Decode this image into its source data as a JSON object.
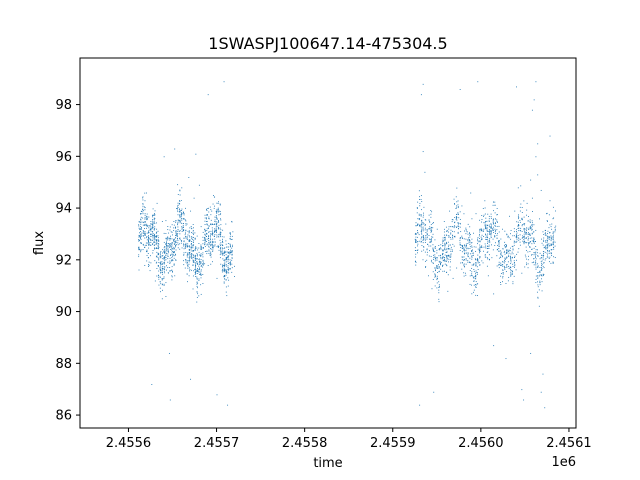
{
  "chart_data": {
    "type": "scatter",
    "title": "1SWASPJ100647.14-475304.5",
    "xlabel": "time",
    "ylabel": "flux",
    "x_offset_label": "1e6",
    "xlim": [
      2455545,
      2456108
    ],
    "ylim": [
      85.5,
      99.8
    ],
    "x_ticks": [
      2455600,
      2455700,
      2455800,
      2455900,
      2456000,
      2456100
    ],
    "x_tick_labels": [
      "2.4556",
      "2.4557",
      "2.4558",
      "2.4559",
      "2.4560",
      "2.4561"
    ],
    "y_ticks": [
      86,
      88,
      90,
      92,
      94,
      96,
      98
    ],
    "y_tick_labels": [
      "86",
      "88",
      "90",
      "92",
      "94",
      "96",
      "98"
    ],
    "grid": false,
    "marker_color": "#1f77b4",
    "seasons": [
      {
        "start": 2455611,
        "end": 2455719,
        "center": 92.6,
        "spread": 0.9
      },
      {
        "start": 2455925,
        "end": 2456085,
        "center": 92.6,
        "spread": 0.9
      }
    ],
    "series": [
      {
        "values": [
          [
            2455612,
            93.2
          ],
          [
            2455614,
            92.4
          ],
          [
            2455616,
            93.8
          ],
          [
            2455618,
            91.8
          ],
          [
            2455620,
            94.6
          ],
          [
            2455622,
            92.1
          ],
          [
            2455624,
            91.6
          ],
          [
            2455626,
            93.0
          ],
          [
            2455628,
            92.7
          ],
          [
            2455630,
            91.2
          ],
          [
            2455632,
            94.2
          ],
          [
            2455634,
            92.5
          ],
          [
            2455636,
            91.9
          ],
          [
            2455638,
            93.5
          ],
          [
            2455640,
            92.3
          ],
          [
            2455642,
            90.6
          ],
          [
            2455644,
            92.9
          ],
          [
            2455646,
            88.4
          ],
          [
            2455648,
            93.1
          ],
          [
            2455650,
            92.0
          ],
          [
            2455652,
            91.4
          ],
          [
            2455654,
            94.0
          ],
          [
            2455656,
            92.6
          ],
          [
            2455658,
            93.7
          ],
          [
            2455660,
            94.8
          ],
          [
            2455662,
            92.2
          ],
          [
            2455664,
            91.7
          ],
          [
            2455666,
            93.4
          ],
          [
            2455668,
            95.2
          ],
          [
            2455670,
            93.9
          ],
          [
            2455672,
            92.8
          ],
          [
            2455674,
            94.4
          ],
          [
            2455676,
            91.5
          ],
          [
            2455678,
            92.4
          ],
          [
            2455680,
            94.9
          ],
          [
            2455682,
            93.3
          ],
          [
            2455684,
            91.1
          ],
          [
            2455686,
            92.6
          ],
          [
            2455688,
            93.6
          ],
          [
            2455690,
            91.8
          ],
          [
            2455692,
            92.2
          ],
          [
            2455694,
            93.9
          ],
          [
            2455696,
            94.5
          ],
          [
            2455698,
            92.7
          ],
          [
            2455700,
            91.3
          ],
          [
            2455702,
            93.0
          ],
          [
            2455704,
            92.5
          ],
          [
            2455706,
            91.6
          ],
          [
            2455708,
            92.9
          ],
          [
            2455710,
            93.4
          ],
          [
            2455712,
            92.1
          ],
          [
            2455714,
            91.9
          ],
          [
            2455716,
            92.8
          ],
          [
            2455718,
            93.1
          ],
          [
            2455626,
            87.2
          ],
          [
            2455640,
            96.0
          ],
          [
            2455647,
            86.6
          ],
          [
            2455652,
            96.3
          ],
          [
            2455670,
            87.4
          ],
          [
            2455676,
            96.1
          ],
          [
            2455690,
            98.4
          ],
          [
            2455700,
            86.8
          ],
          [
            2455708,
            98.9
          ],
          [
            2455712,
            86.4
          ],
          [
            2455926,
            93.0
          ],
          [
            2455928,
            92.4
          ],
          [
            2455930,
            93.6
          ],
          [
            2455932,
            94.5
          ],
          [
            2455934,
            96.2
          ],
          [
            2455936,
            95.4
          ],
          [
            2455938,
            92.0
          ],
          [
            2455940,
            91.4
          ],
          [
            2455942,
            92.8
          ],
          [
            2455944,
            90.9
          ],
          [
            2455946,
            92.1
          ],
          [
            2455948,
            91.6
          ],
          [
            2455950,
            93.2
          ],
          [
            2455952,
            90.4
          ],
          [
            2455954,
            92.6
          ],
          [
            2455956,
            91.8
          ],
          [
            2455958,
            93.5
          ],
          [
            2455960,
            92.3
          ],
          [
            2455962,
            90.8
          ],
          [
            2455964,
            93.9
          ],
          [
            2455966,
            92.5
          ],
          [
            2455968,
            91.3
          ],
          [
            2455970,
            92.9
          ],
          [
            2455972,
            91.7
          ],
          [
            2455974,
            93.4
          ],
          [
            2455976,
            92.6
          ],
          [
            2455978,
            94.1
          ],
          [
            2455980,
            92.0
          ],
          [
            2455982,
            91.5
          ],
          [
            2455984,
            93.1
          ],
          [
            2455986,
            92.7
          ],
          [
            2455988,
            94.6
          ],
          [
            2455990,
            92.4
          ],
          [
            2455992,
            91.2
          ],
          [
            2455994,
            93.8
          ],
          [
            2455996,
            92.2
          ],
          [
            2455998,
            93.0
          ],
          [
            2456000,
            92.5
          ],
          [
            2456002,
            91.9
          ],
          [
            2456004,
            94.3
          ],
          [
            2456006,
            92.8
          ],
          [
            2456008,
            91.4
          ],
          [
            2456010,
            93.3
          ],
          [
            2456012,
            92.1
          ],
          [
            2456014,
            90.7
          ],
          [
            2456016,
            93.6
          ],
          [
            2456018,
            94.0
          ],
          [
            2456020,
            92.6
          ],
          [
            2456022,
            91.8
          ],
          [
            2456024,
            93.2
          ],
          [
            2456026,
            92.3
          ],
          [
            2456028,
            91.1
          ],
          [
            2456030,
            92.9
          ],
          [
            2456032,
            93.7
          ],
          [
            2456034,
            91.6
          ],
          [
            2456036,
            92.4
          ],
          [
            2456038,
            93.9
          ],
          [
            2456040,
            92.0
          ],
          [
            2456042,
            94.8
          ],
          [
            2456044,
            92.7
          ],
          [
            2456046,
            91.5
          ],
          [
            2456048,
            93.4
          ],
          [
            2456050,
            92.2
          ],
          [
            2456052,
            94.2
          ],
          [
            2456054,
            93.0
          ],
          [
            2456056,
            95.1
          ],
          [
            2456058,
            94.4
          ],
          [
            2456060,
            92.8
          ],
          [
            2456062,
            96.0
          ],
          [
            2456064,
            95.3
          ],
          [
            2456066,
            93.6
          ],
          [
            2456068,
            94.7
          ],
          [
            2456070,
            93.1
          ],
          [
            2456072,
            92.5
          ],
          [
            2456074,
            93.8
          ],
          [
            2456076,
            92.9
          ],
          [
            2456078,
            94.3
          ],
          [
            2456080,
            93.4
          ],
          [
            2456082,
            92.6
          ],
          [
            2456084,
            93.2
          ],
          [
            2455932,
            98.4
          ],
          [
            2455934,
            98.8
          ],
          [
            2455930,
            86.4
          ],
          [
            2455946,
            86.9
          ],
          [
            2455976,
            98.6
          ],
          [
            2455996,
            98.9
          ],
          [
            2456014,
            88.7
          ],
          [
            2456028,
            88.2
          ],
          [
            2456040,
            98.7
          ],
          [
            2456046,
            87.0
          ],
          [
            2456058,
            97.8
          ],
          [
            2456060,
            98.2
          ],
          [
            2456062,
            98.9
          ],
          [
            2456064,
            96.5
          ],
          [
            2456068,
            86.9
          ],
          [
            2456070,
            87.6
          ],
          [
            2456072,
            86.3
          ],
          [
            2456078,
            96.8
          ],
          [
            2456056,
            88.4
          ],
          [
            2456048,
            86.6
          ]
        ]
      }
    ]
  }
}
